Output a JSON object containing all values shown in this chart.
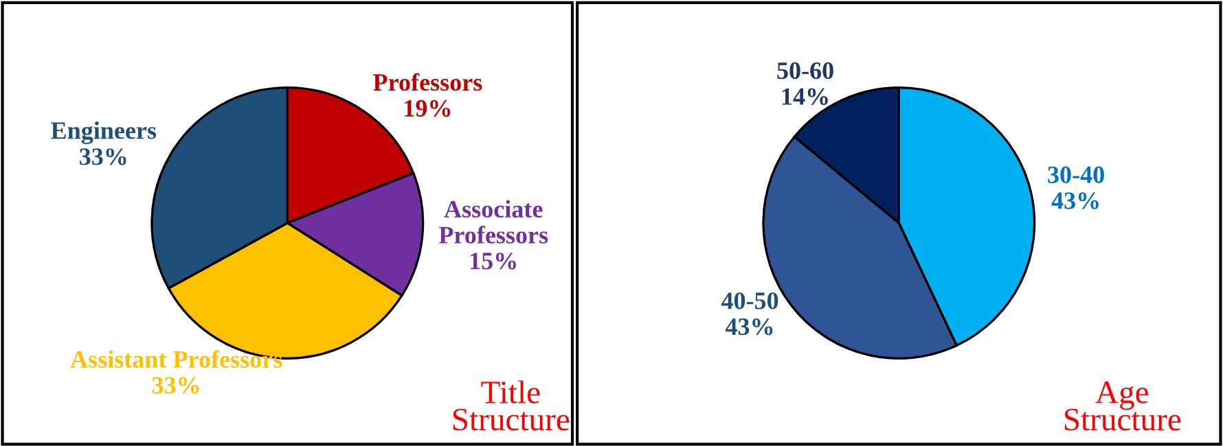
{
  "chart_data": [
    {
      "type": "pie",
      "categories": [
        "Professors",
        "Associate Professors",
        "Assistant Professors",
        "Engineers"
      ],
      "values": [
        19,
        15,
        33,
        33
      ],
      "value_labels": [
        "19%",
        "15%",
        "33%",
        "33%"
      ],
      "colors": [
        "#c00000",
        "#7030a0",
        "#ffc000",
        "#1f4e79"
      ],
      "annotations": [
        "Title\nStructure"
      ],
      "legend": false
    },
    {
      "type": "pie",
      "categories": [
        "30-40",
        "40-50",
        "50-60"
      ],
      "values": [
        43,
        43,
        14
      ],
      "value_labels": [
        "43%",
        "43%",
        "14%"
      ],
      "colors": [
        "#00b0f0",
        "#2f5597",
        "#002060"
      ],
      "annotations": [
        "Age\nStructure"
      ],
      "legend": false
    }
  ]
}
